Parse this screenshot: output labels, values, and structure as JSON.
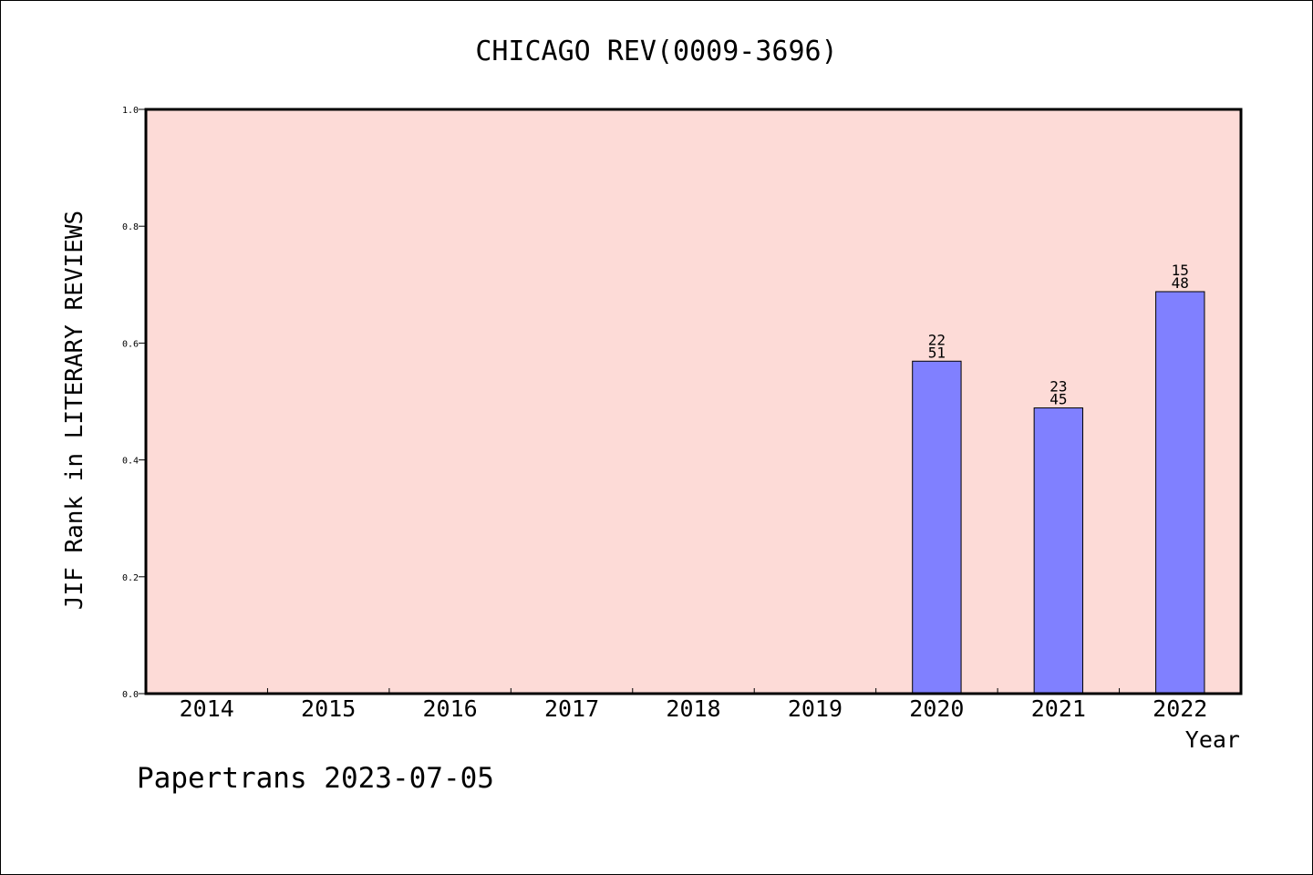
{
  "chart_data": {
    "type": "bar",
    "title": "CHICAGO REV(0009-3696)",
    "xlabel": "Year",
    "ylabel": "JIF Rank in LITERARY REVIEWS",
    "ylim": [
      0,
      1.0
    ],
    "yticks": [
      "0.0",
      "0.2",
      "0.4",
      "0.6",
      "0.8",
      "1.0"
    ],
    "categories": [
      "2014",
      "2015",
      "2016",
      "2017",
      "2018",
      "2019",
      "2020",
      "2021",
      "2022"
    ],
    "values": [
      null,
      null,
      null,
      null,
      null,
      null,
      0.569,
      0.489,
      0.688
    ],
    "bar_labels": [
      null,
      null,
      null,
      null,
      null,
      null,
      {
        "rank": "22",
        "total": "51"
      },
      {
        "rank": "23",
        "total": "45"
      },
      {
        "rank": "15",
        "total": "48"
      }
    ],
    "grid": false,
    "colors": {
      "plot_background": "#fddbd7",
      "bar_fill": "#8080ff",
      "bar_stroke": "#000000"
    }
  },
  "footer": "Papertrans 2023-07-05"
}
